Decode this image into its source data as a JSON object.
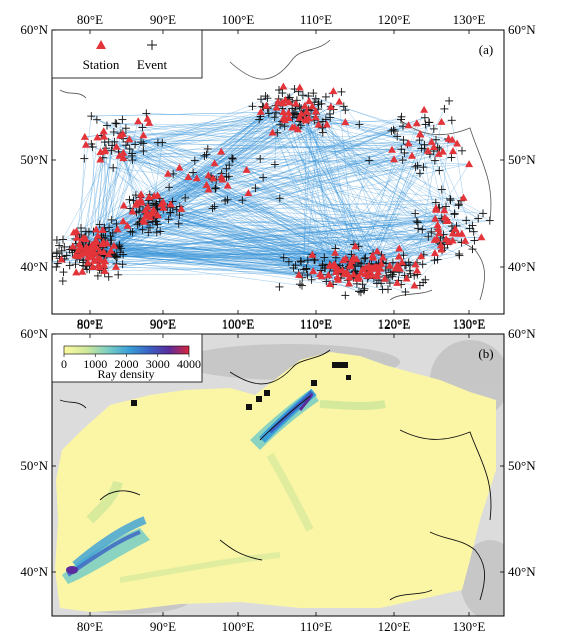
{
  "panel_a": {
    "label": "(a)",
    "legend": {
      "station": "Station",
      "event": "Event"
    },
    "colors": {
      "ray": "#2f8fd6",
      "station": "#e3343a",
      "event": "#111111",
      "land": "#ffffff"
    }
  },
  "panel_b": {
    "label": "(b)",
    "colorbar": {
      "ticks": [
        "0",
        "1000",
        "2000",
        "3000",
        "4000"
      ],
      "title": "Ray density",
      "colors": [
        "#fdfaa0",
        "#cfe89a",
        "#7ccfc3",
        "#3aa0d8",
        "#3a62c4",
        "#5a2c9c",
        "#d9253c"
      ]
    },
    "colors": {
      "background": "#fbf6a6",
      "relief": "#c8c8c8"
    }
  },
  "axes": {
    "x_ticks": [
      "80°E",
      "90°E",
      "100°E",
      "110°E",
      "120°E",
      "130°E"
    ],
    "y_ticks": [
      "60°N",
      "50°N",
      "40°N"
    ]
  }
}
